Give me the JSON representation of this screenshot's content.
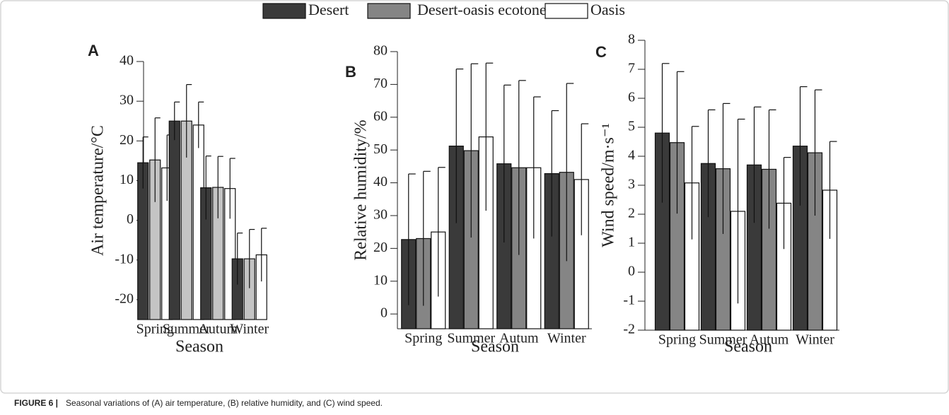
{
  "chart_data": [
    {
      "type": "bar",
      "panel": "A",
      "ylabel": "Air temperature/°C",
      "xlabel": "Season",
      "categories": [
        "Spring",
        "Summer",
        "Autum",
        "Winter"
      ],
      "series": [
        {
          "name": "Desert",
          "color": "#3a3a3a",
          "values": [
            14.5,
            25,
            8.2,
            -9.7
          ],
          "errors": [
            6.5,
            4.8,
            8,
            6.5
          ]
        },
        {
          "name": "Desert-oasis ecotone",
          "color": "#c4c4c4",
          "values": [
            15.2,
            25,
            8.3,
            -9.7
          ],
          "errors": [
            10.6,
            9.2,
            7.8,
            7.4
          ]
        },
        {
          "name": "Oasis",
          "color": "#ffffff",
          "values": [
            13.2,
            24,
            8,
            -8.7
          ],
          "errors": [
            8.3,
            5.8,
            7.6,
            6.7
          ]
        }
      ],
      "ylim": [
        -25,
        40
      ],
      "yticks": [
        -20,
        -10,
        0,
        10,
        20,
        30,
        40
      ]
    },
    {
      "type": "bar",
      "panel": "B",
      "ylabel": "Relative humidity/%",
      "xlabel": "Season",
      "categories": [
        "Spring",
        "Summer",
        "Autum",
        "Winter"
      ],
      "series": [
        {
          "name": "Desert",
          "color": "#3a3a3a",
          "values": [
            22.7,
            51.2,
            45.8,
            42.8
          ],
          "errors": [
            20,
            23.5,
            24,
            19.2
          ]
        },
        {
          "name": "Desert-oasis ecotone",
          "color": "#858585",
          "values": [
            23,
            49.8,
            44.6,
            43.2
          ],
          "errors": [
            20.5,
            26.5,
            26.6,
            27.1
          ]
        },
        {
          "name": "Oasis",
          "color": "#ffffff",
          "values": [
            25,
            54,
            44.6,
            41
          ],
          "errors": [
            19.7,
            22.5,
            21.6,
            17
          ]
        }
      ],
      "ylim": [
        -4.5,
        80
      ],
      "yticks": [
        0,
        10,
        20,
        30,
        40,
        50,
        60,
        70,
        80
      ]
    },
    {
      "type": "bar",
      "panel": "C",
      "ylabel": "Wind speed/m·s⁻¹",
      "xlabel": "Season",
      "categories": [
        "Spring",
        "Summer",
        "Autum",
        "Winter"
      ],
      "series": [
        {
          "name": "Desert",
          "color": "#3a3a3a",
          "values": [
            4.8,
            3.75,
            3.7,
            4.35
          ],
          "errors": [
            2.4,
            1.85,
            2,
            2.05
          ]
        },
        {
          "name": "Desert-oasis ecotone",
          "color": "#858585",
          "values": [
            4.47,
            3.57,
            3.55,
            4.12
          ],
          "errors": [
            2.45,
            2.25,
            2.05,
            2.17
          ]
        },
        {
          "name": "Oasis",
          "color": "#ffffff",
          "values": [
            3.08,
            2.1,
            2.38,
            2.83
          ],
          "errors": [
            1.95,
            3.18,
            1.58,
            1.68
          ]
        }
      ],
      "ylim": [
        -2,
        8
      ],
      "yticks": [
        -2,
        -1,
        0,
        1,
        2,
        3,
        4,
        5,
        6,
        7,
        8
      ]
    }
  ],
  "caption": {
    "label": "FIGURE 6 |",
    "text": "Seasonal variations of (A) air temperature, (B) relative humidity, and (C) wind speed."
  }
}
